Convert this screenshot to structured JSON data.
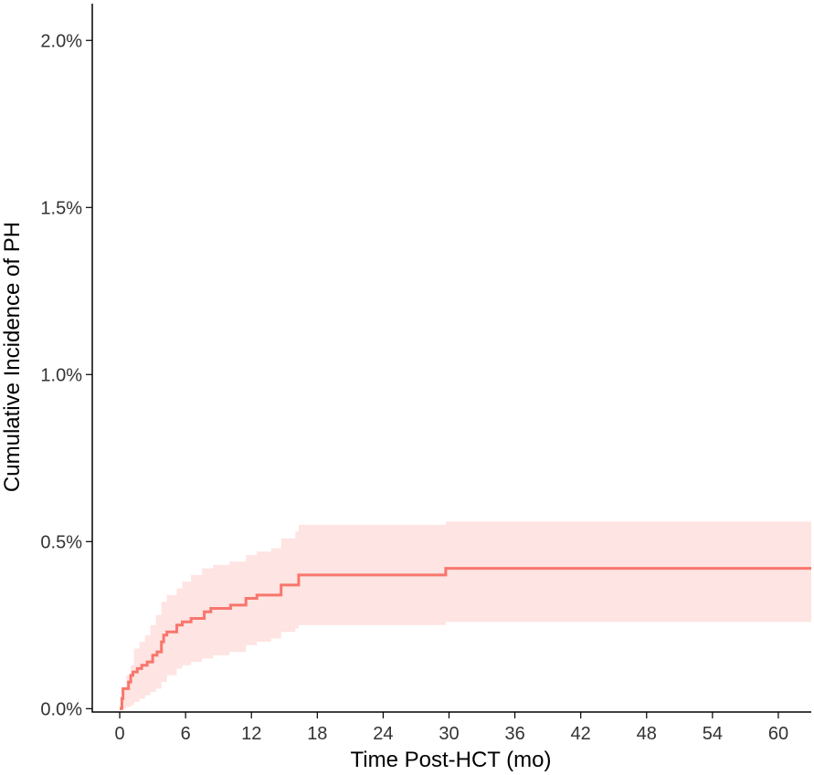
{
  "chart_data": {
    "type": "line",
    "xlabel": "Time Post-HCT (mo)",
    "ylabel": "Cumulative Incidence of PH",
    "xlim": [
      -2.5,
      63
    ],
    "ylim": [
      -0.0001,
      0.0211
    ],
    "x_ticks": [
      0,
      6,
      12,
      18,
      24,
      30,
      36,
      42,
      48,
      54,
      60
    ],
    "x_tick_labels": [
      "0",
      "6",
      "12",
      "18",
      "24",
      "30",
      "36",
      "42",
      "48",
      "54",
      "60"
    ],
    "y_ticks": [
      0,
      0.005,
      0.01,
      0.015,
      0.02
    ],
    "y_tick_labels": [
      "0.0%",
      "0.5%",
      "1.0%",
      "1.5%",
      "2.0%"
    ],
    "grid": false,
    "legend": "none",
    "colors": {
      "line": "#F8766D",
      "band": "#F8766D",
      "axis": "#000000",
      "tick_text": "#333333"
    },
    "series": [
      {
        "points": [
          {
            "x": 0.0,
            "y": 0.0
          },
          {
            "x": 0.2,
            "y": 0.0003
          },
          {
            "x": 0.3,
            "y": 0.0006
          },
          {
            "x": 0.8,
            "y": 0.0008
          },
          {
            "x": 1.0,
            "y": 0.001
          },
          {
            "x": 1.2,
            "y": 0.0011
          },
          {
            "x": 1.6,
            "y": 0.0012
          },
          {
            "x": 2.0,
            "y": 0.0013
          },
          {
            "x": 2.5,
            "y": 0.0014
          },
          {
            "x": 3.0,
            "y": 0.0016
          },
          {
            "x": 3.4,
            "y": 0.0017
          },
          {
            "x": 3.8,
            "y": 0.002
          },
          {
            "x": 4.0,
            "y": 0.0022
          },
          {
            "x": 4.3,
            "y": 0.0023
          },
          {
            "x": 5.2,
            "y": 0.0025
          },
          {
            "x": 5.7,
            "y": 0.0026
          },
          {
            "x": 6.5,
            "y": 0.0027
          },
          {
            "x": 7.7,
            "y": 0.0029
          },
          {
            "x": 8.3,
            "y": 0.003
          },
          {
            "x": 10.1,
            "y": 0.0031
          },
          {
            "x": 11.5,
            "y": 0.0033
          },
          {
            "x": 12.5,
            "y": 0.0034
          },
          {
            "x": 14.7,
            "y": 0.0037
          },
          {
            "x": 16.3,
            "y": 0.004
          },
          {
            "x": 29.7,
            "y": 0.0042
          },
          {
            "x": 63.0,
            "y": 0.0042
          }
        ],
        "band": [
          {
            "x": 0.0,
            "lo": 0.0,
            "hi": 0.0001
          },
          {
            "x": 0.2,
            "lo": 0.0,
            "hi": 0.0004
          },
          {
            "x": 0.4,
            "lo": 0.0,
            "hi": 0.0006
          },
          {
            "x": 0.6,
            "lo": 5e-05,
            "hi": 0.001
          },
          {
            "x": 1.0,
            "lo": 0.0001,
            "hi": 0.0013
          },
          {
            "x": 1.3,
            "lo": 0.0002,
            "hi": 0.0018
          },
          {
            "x": 1.8,
            "lo": 0.0003,
            "hi": 0.002
          },
          {
            "x": 2.3,
            "lo": 0.0004,
            "hi": 0.0022
          },
          {
            "x": 2.8,
            "lo": 0.0005,
            "hi": 0.0025
          },
          {
            "x": 3.3,
            "lo": 0.0006,
            "hi": 0.0028
          },
          {
            "x": 3.8,
            "lo": 0.0008,
            "hi": 0.0032
          },
          {
            "x": 4.3,
            "lo": 0.001,
            "hi": 0.0034
          },
          {
            "x": 5.2,
            "lo": 0.0012,
            "hi": 0.0036
          },
          {
            "x": 5.7,
            "lo": 0.0013,
            "hi": 0.0038
          },
          {
            "x": 6.5,
            "lo": 0.0014,
            "hi": 0.004
          },
          {
            "x": 7.5,
            "lo": 0.0015,
            "hi": 0.0042
          },
          {
            "x": 8.5,
            "lo": 0.0016,
            "hi": 0.0043
          },
          {
            "x": 10.0,
            "lo": 0.0017,
            "hi": 0.0044
          },
          {
            "x": 11.5,
            "lo": 0.0019,
            "hi": 0.0046
          },
          {
            "x": 12.5,
            "lo": 0.002,
            "hi": 0.0047
          },
          {
            "x": 13.8,
            "lo": 0.0021,
            "hi": 0.0048
          },
          {
            "x": 14.7,
            "lo": 0.0023,
            "hi": 0.0051
          },
          {
            "x": 16.0,
            "lo": 0.0024,
            "hi": 0.0053
          },
          {
            "x": 16.3,
            "lo": 0.0025,
            "hi": 0.0055
          },
          {
            "x": 29.7,
            "lo": 0.0026,
            "hi": 0.0056
          },
          {
            "x": 63.0,
            "lo": 0.0026,
            "hi": 0.0057
          }
        ]
      }
    ]
  }
}
